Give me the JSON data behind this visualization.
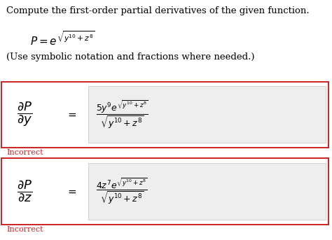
{
  "title_text": "Compute the first-order partial derivatives of the given function.",
  "function_text": "$P = e^{\\sqrt{y^{10}+z^8}}$",
  "note_text": "(Use symbolic notation and fractions where needed.)",
  "box1_label": "$\\dfrac{\\partial P}{\\partial y}$",
  "box1_eq": "$\\dfrac{5y^{9}e^{\\sqrt{y^{10}+z^8}}}{\\sqrt{y^{10}+z^8}}$",
  "box2_label": "$\\dfrac{\\partial P}{\\partial z}$",
  "box2_eq": "$\\dfrac{4z^{7}e^{\\sqrt{y^{10}+z^8}}}{\\sqrt{y^{10}+z^8}}$",
  "equals": "$=$",
  "incorrect_text": "Incorrect",
  "box_border_color": "#cc2222",
  "inner_box_color": "#eeeeee",
  "inner_box_edge_color": "#cccccc",
  "incorrect_color": "#cc2222",
  "bg_color": "#ffffff",
  "text_color": "#000000",
  "title_fontsize": 9.5,
  "func_fontsize": 11,
  "note_fontsize": 9.5,
  "label_fontsize": 13,
  "eq_fontsize": 9,
  "equals_fontsize": 11,
  "incorrect_fontsize": 8
}
